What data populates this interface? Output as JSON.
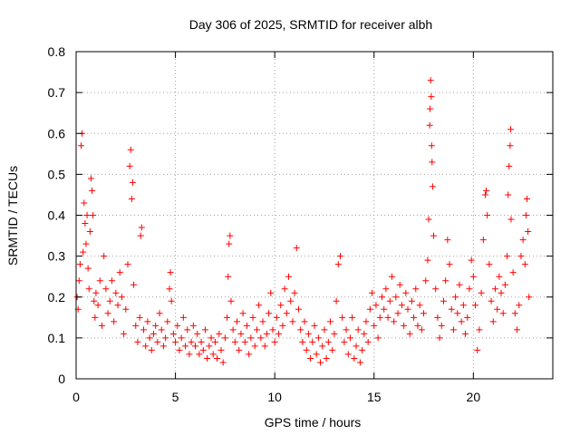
{
  "chart_data": {
    "type": "scatter",
    "title": "Day 306 of 2025, SRMTID for receiver albh",
    "xlabel": "GPS time / hours",
    "ylabel": "SRMTID / TECUs",
    "xlim": [
      0,
      24
    ],
    "ylim": [
      0,
      0.8
    ],
    "xticks": [
      0,
      5,
      10,
      15,
      20
    ],
    "xtick_labels": [
      "0",
      "5",
      "10",
      "15",
      "20"
    ],
    "yticks": [
      0,
      0.1,
      0.2,
      0.3,
      0.4,
      0.5,
      0.6,
      0.7,
      0.8
    ],
    "ytick_labels": [
      "0",
      "0.1",
      "0.2",
      "0.3",
      "0.4",
      "0.5",
      "0.6",
      "0.7",
      "0.8"
    ],
    "grid": true,
    "marker": "+",
    "marker_color": "#ff0000",
    "series": [
      {
        "name": "SRMTID",
        "points": [
          [
            0.05,
            0.2
          ],
          [
            0.1,
            0.17
          ],
          [
            0.15,
            0.24
          ],
          [
            0.2,
            0.28
          ],
          [
            0.25,
            0.57
          ],
          [
            0.3,
            0.6
          ],
          [
            0.35,
            0.31
          ],
          [
            0.4,
            0.43
          ],
          [
            0.45,
            0.38
          ],
          [
            0.5,
            0.33
          ],
          [
            0.55,
            0.4
          ],
          [
            0.6,
            0.27
          ],
          [
            0.65,
            0.22
          ],
          [
            0.7,
            0.36
          ],
          [
            0.75,
            0.49
          ],
          [
            0.8,
            0.46
          ],
          [
            0.85,
            0.4
          ],
          [
            0.9,
            0.19
          ],
          [
            0.95,
            0.15
          ],
          [
            1.0,
            0.21
          ],
          [
            1.1,
            0.18
          ],
          [
            1.2,
            0.24
          ],
          [
            1.3,
            0.13
          ],
          [
            1.4,
            0.3
          ],
          [
            1.5,
            0.22
          ],
          [
            1.6,
            0.16
          ],
          [
            1.7,
            0.19
          ],
          [
            1.8,
            0.24
          ],
          [
            1.9,
            0.14
          ],
          [
            2.0,
            0.21
          ],
          [
            2.1,
            0.18
          ],
          [
            2.2,
            0.26
          ],
          [
            2.3,
            0.2
          ],
          [
            2.4,
            0.11
          ],
          [
            2.5,
            0.17
          ],
          [
            2.6,
            0.28
          ],
          [
            2.7,
            0.52
          ],
          [
            2.75,
            0.56
          ],
          [
            2.8,
            0.44
          ],
          [
            2.85,
            0.48
          ],
          [
            2.9,
            0.23
          ],
          [
            3.0,
            0.13
          ],
          [
            3.1,
            0.09
          ],
          [
            3.2,
            0.15
          ],
          [
            3.25,
            0.35
          ],
          [
            3.3,
            0.37
          ],
          [
            3.4,
            0.12
          ],
          [
            3.5,
            0.08
          ],
          [
            3.6,
            0.14
          ],
          [
            3.7,
            0.1
          ],
          [
            3.8,
            0.07
          ],
          [
            3.9,
            0.11
          ],
          [
            4.0,
            0.13
          ],
          [
            4.1,
            0.09
          ],
          [
            4.2,
            0.16
          ],
          [
            4.3,
            0.12
          ],
          [
            4.4,
            0.08
          ],
          [
            4.5,
            0.1
          ],
          [
            4.6,
            0.14
          ],
          [
            4.7,
            0.22
          ],
          [
            4.75,
            0.26
          ],
          [
            4.8,
            0.19
          ],
          [
            4.9,
            0.11
          ],
          [
            5.0,
            0.09
          ],
          [
            5.1,
            0.13
          ],
          [
            5.2,
            0.07
          ],
          [
            5.3,
            0.1
          ],
          [
            5.4,
            0.15
          ],
          [
            5.5,
            0.08
          ],
          [
            5.6,
            0.12
          ],
          [
            5.7,
            0.06
          ],
          [
            5.8,
            0.09
          ],
          [
            5.9,
            0.13
          ],
          [
            6.0,
            0.08
          ],
          [
            6.1,
            0.11
          ],
          [
            6.2,
            0.06
          ],
          [
            6.3,
            0.09
          ],
          [
            6.4,
            0.07
          ],
          [
            6.5,
            0.12
          ],
          [
            6.6,
            0.05
          ],
          [
            6.7,
            0.08
          ],
          [
            6.8,
            0.1
          ],
          [
            6.9,
            0.06
          ],
          [
            7.0,
            0.09
          ],
          [
            7.1,
            0.05
          ],
          [
            7.2,
            0.11
          ],
          [
            7.3,
            0.07
          ],
          [
            7.4,
            0.04
          ],
          [
            7.5,
            0.1
          ],
          [
            7.6,
            0.15
          ],
          [
            7.65,
            0.25
          ],
          [
            7.7,
            0.33
          ],
          [
            7.75,
            0.35
          ],
          [
            7.8,
            0.19
          ],
          [
            7.9,
            0.12
          ],
          [
            8.0,
            0.09
          ],
          [
            8.1,
            0.14
          ],
          [
            8.2,
            0.07
          ],
          [
            8.3,
            0.11
          ],
          [
            8.4,
            0.16
          ],
          [
            8.5,
            0.09
          ],
          [
            8.6,
            0.13
          ],
          [
            8.7,
            0.06
          ],
          [
            8.8,
            0.1
          ],
          [
            8.9,
            0.15
          ],
          [
            9.0,
            0.08
          ],
          [
            9.1,
            0.12
          ],
          [
            9.2,
            0.18
          ],
          [
            9.3,
            0.1
          ],
          [
            9.4,
            0.14
          ],
          [
            9.5,
            0.08
          ],
          [
            9.6,
            0.11
          ],
          [
            9.7,
            0.16
          ],
          [
            9.8,
            0.21
          ],
          [
            9.9,
            0.12
          ],
          [
            10.0,
            0.09
          ],
          [
            10.1,
            0.15
          ],
          [
            10.2,
            0.11
          ],
          [
            10.3,
            0.18
          ],
          [
            10.4,
            0.13
          ],
          [
            10.5,
            0.22
          ],
          [
            10.6,
            0.16
          ],
          [
            10.7,
            0.25
          ],
          [
            10.8,
            0.19
          ],
          [
            10.9,
            0.14
          ],
          [
            11.0,
            0.21
          ],
          [
            11.1,
            0.32
          ],
          [
            11.2,
            0.17
          ],
          [
            11.3,
            0.12
          ],
          [
            11.4,
            0.09
          ],
          [
            11.5,
            0.14
          ],
          [
            11.6,
            0.07
          ],
          [
            11.7,
            0.11
          ],
          [
            11.8,
            0.05
          ],
          [
            11.9,
            0.09
          ],
          [
            12.0,
            0.13
          ],
          [
            12.1,
            0.06
          ],
          [
            12.2,
            0.1
          ],
          [
            12.3,
            0.04
          ],
          [
            12.4,
            0.08
          ],
          [
            12.5,
            0.12
          ],
          [
            12.6,
            0.05
          ],
          [
            12.7,
            0.09
          ],
          [
            12.8,
            0.14
          ],
          [
            12.9,
            0.07
          ],
          [
            13.0,
            0.11
          ],
          [
            13.1,
            0.19
          ],
          [
            13.2,
            0.28
          ],
          [
            13.3,
            0.3
          ],
          [
            13.4,
            0.15
          ],
          [
            13.5,
            0.09
          ],
          [
            13.6,
            0.12
          ],
          [
            13.7,
            0.06
          ],
          [
            13.8,
            0.1
          ],
          [
            13.9,
            0.15
          ],
          [
            14.0,
            0.05
          ],
          [
            14.1,
            0.08
          ],
          [
            14.2,
            0.12
          ],
          [
            14.3,
            0.04
          ],
          [
            14.4,
            0.07
          ],
          [
            14.5,
            0.11
          ],
          [
            14.6,
            0.14
          ],
          [
            14.7,
            0.09
          ],
          [
            14.8,
            0.17
          ],
          [
            14.9,
            0.21
          ],
          [
            15.0,
            0.13
          ],
          [
            15.1,
            0.18
          ],
          [
            15.2,
            0.1
          ],
          [
            15.3,
            0.15
          ],
          [
            15.4,
            0.2
          ],
          [
            15.5,
            0.17
          ],
          [
            15.6,
            0.22
          ],
          [
            15.7,
            0.15
          ],
          [
            15.8,
            0.19
          ],
          [
            15.9,
            0.25
          ],
          [
            16.0,
            0.14
          ],
          [
            16.1,
            0.2
          ],
          [
            16.2,
            0.16
          ],
          [
            16.3,
            0.23
          ],
          [
            16.4,
            0.18
          ],
          [
            16.5,
            0.13
          ],
          [
            16.6,
            0.21
          ],
          [
            16.7,
            0.17
          ],
          [
            16.8,
            0.11
          ],
          [
            16.9,
            0.19
          ],
          [
            17.0,
            0.15
          ],
          [
            17.1,
            0.22
          ],
          [
            17.2,
            0.13
          ],
          [
            17.3,
            0.18
          ],
          [
            17.4,
            0.12
          ],
          [
            17.5,
            0.16
          ],
          [
            17.6,
            0.24
          ],
          [
            17.7,
            0.29
          ],
          [
            17.75,
            0.39
          ],
          [
            17.8,
            0.62
          ],
          [
            17.82,
            0.66
          ],
          [
            17.85,
            0.73
          ],
          [
            17.88,
            0.69
          ],
          [
            17.9,
            0.57
          ],
          [
            17.92,
            0.53
          ],
          [
            17.95,
            0.47
          ],
          [
            18.0,
            0.35
          ],
          [
            18.1,
            0.22
          ],
          [
            18.2,
            0.15
          ],
          [
            18.3,
            0.1
          ],
          [
            18.4,
            0.13
          ],
          [
            18.5,
            0.19
          ],
          [
            18.6,
            0.24
          ],
          [
            18.7,
            0.34
          ],
          [
            18.8,
            0.28
          ],
          [
            18.9,
            0.17
          ],
          [
            19.0,
            0.12
          ],
          [
            19.1,
            0.2
          ],
          [
            19.2,
            0.16
          ],
          [
            19.3,
            0.23
          ],
          [
            19.4,
            0.14
          ],
          [
            19.5,
            0.18
          ],
          [
            19.6,
            0.11
          ],
          [
            19.7,
            0.15
          ],
          [
            19.8,
            0.22
          ],
          [
            19.9,
            0.29
          ],
          [
            20.0,
            0.25
          ],
          [
            20.1,
            0.18
          ],
          [
            20.2,
            0.07
          ],
          [
            20.3,
            0.12
          ],
          [
            20.4,
            0.21
          ],
          [
            20.5,
            0.34
          ],
          [
            20.6,
            0.45
          ],
          [
            20.65,
            0.46
          ],
          [
            20.7,
            0.4
          ],
          [
            20.8,
            0.28
          ],
          [
            20.9,
            0.19
          ],
          [
            21.0,
            0.14
          ],
          [
            21.1,
            0.22
          ],
          [
            21.2,
            0.17
          ],
          [
            21.3,
            0.25
          ],
          [
            21.4,
            0.21
          ],
          [
            21.5,
            0.16
          ],
          [
            21.6,
            0.23
          ],
          [
            21.7,
            0.3
          ],
          [
            21.75,
            0.45
          ],
          [
            21.8,
            0.52
          ],
          [
            21.85,
            0.57
          ],
          [
            21.88,
            0.61
          ],
          [
            21.9,
            0.39
          ],
          [
            22.0,
            0.26
          ],
          [
            22.1,
            0.16
          ],
          [
            22.2,
            0.12
          ],
          [
            22.3,
            0.18
          ],
          [
            22.4,
            0.3
          ],
          [
            22.5,
            0.34
          ],
          [
            22.6,
            0.28
          ],
          [
            22.65,
            0.4
          ],
          [
            22.7,
            0.44
          ],
          [
            22.75,
            0.36
          ],
          [
            22.8,
            0.2
          ]
        ]
      }
    ]
  }
}
